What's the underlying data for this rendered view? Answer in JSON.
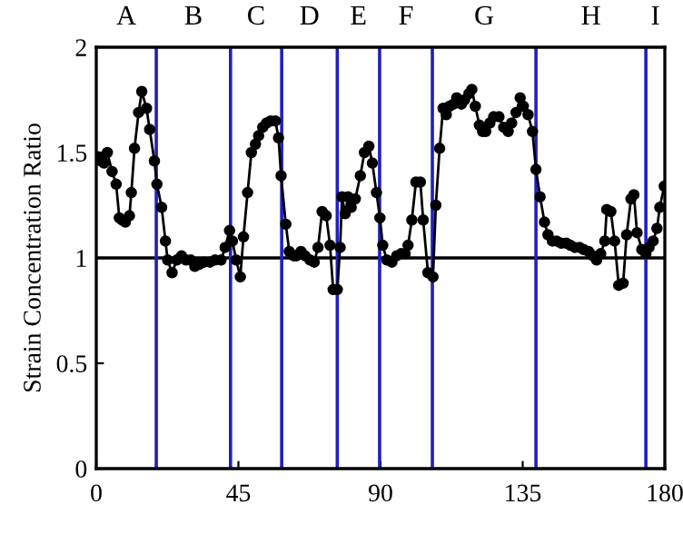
{
  "chart_data": {
    "type": "line",
    "ylabel": "Strain Concentration Ratio",
    "marker": "circle",
    "grid": false,
    "xlim": [
      0,
      180
    ],
    "xticks": [
      0,
      45,
      90,
      135,
      180
    ],
    "ylim": [
      0,
      2
    ],
    "yticks": [
      0,
      0.5,
      1,
      1.5,
      2
    ],
    "x": [
      0.6,
      1.5,
      2.5,
      3.5,
      5,
      6.3,
      7.3,
      8.2,
      9.2,
      10.5,
      11.1,
      12.1,
      13.4,
      14.4,
      15.9,
      16.9,
      18.4,
      19.2,
      20.7,
      21.9,
      22.6,
      24,
      25.5,
      27,
      28.4,
      29.9,
      31.2,
      32.6,
      34.1,
      36,
      37.6,
      39.5,
      40.8,
      42.2,
      43.1,
      44.3,
      45.6,
      46.6,
      47.9,
      49.1,
      50.4,
      51.4,
      52.7,
      53.9,
      55.2,
      56.7,
      57.7,
      58.5,
      60,
      61.1,
      62.5,
      63.4,
      64.8,
      66.1,
      67.7,
      69,
      70.2,
      71.5,
      72.8,
      74,
      75,
      76.3,
      77.2,
      77.8,
      78.8,
      79.7,
      80.7,
      82,
      83.6,
      84.9,
      86.3,
      87.4,
      88.7,
      89.8,
      90.7,
      92,
      93.6,
      95.1,
      96.5,
      97.8,
      98.7,
      99.9,
      101.2,
      102.6,
      103.5,
      105,
      106.6,
      107.5,
      108.7,
      109.8,
      110.8,
      111.8,
      113.1,
      114.1,
      115.6,
      116.6,
      118,
      118.9,
      120,
      121.3,
      122.3,
      123.3,
      124.6,
      125.8,
      127.5,
      129,
      130.4,
      131.5,
      132.9,
      134.2,
      135.2,
      136.7,
      138.1,
      139.2,
      140.5,
      141.9,
      143,
      144.4,
      145.7,
      147.2,
      148.8,
      150.1,
      151.5,
      153,
      154.3,
      155.9,
      157.2,
      158.4,
      159.7,
      161,
      161.6,
      162.9,
      164.1,
      165.4,
      166.8,
      167.9,
      169.3,
      170.2,
      171.2,
      172.7,
      174,
      175,
      176.3,
      177.5,
      178.4,
      179.8
    ],
    "series": [
      {
        "color": "#000000",
        "values": [
          1.48,
          1.46,
          1.45,
          1.5,
          1.41,
          1.35,
          1.19,
          1.18,
          1.17,
          1.2,
          1.31,
          1.52,
          1.69,
          1.79,
          1.71,
          1.61,
          1.46,
          1.35,
          1.24,
          1.08,
          0.99,
          0.93,
          0.99,
          1.01,
          0.99,
          0.99,
          0.96,
          0.97,
          0.98,
          0.98,
          0.99,
          0.99,
          1.05,
          1.13,
          1.08,
          0.99,
          0.91,
          1.1,
          1.31,
          1.5,
          1.54,
          1.58,
          1.62,
          1.64,
          1.65,
          1.65,
          1.57,
          1.39,
          1.16,
          1.03,
          1.01,
          1.01,
          1.03,
          1.01,
          0.99,
          0.98,
          1.05,
          1.22,
          1.2,
          1.06,
          0.85,
          0.85,
          1.05,
          1.29,
          1.21,
          1.29,
          1.24,
          1.28,
          1.39,
          1.5,
          1.53,
          1.45,
          1.31,
          1.19,
          1.06,
          0.99,
          0.98,
          1.01,
          1.02,
          1.02,
          1.06,
          1.18,
          1.36,
          1.36,
          1.18,
          0.93,
          0.91,
          1.25,
          1.52,
          1.71,
          1.68,
          1.72,
          1.73,
          1.76,
          1.73,
          1.75,
          1.78,
          1.8,
          1.72,
          1.63,
          1.6,
          1.6,
          1.64,
          1.67,
          1.67,
          1.62,
          1.6,
          1.64,
          1.69,
          1.76,
          1.72,
          1.68,
          1.6,
          1.42,
          1.29,
          1.17,
          1.11,
          1.08,
          1.08,
          1.07,
          1.07,
          1.06,
          1.05,
          1.05,
          1.04,
          1.03,
          1.01,
          0.99,
          1.02,
          1.08,
          1.23,
          1.22,
          1.08,
          0.87,
          0.88,
          1.11,
          1.28,
          1.3,
          1.12,
          1.04,
          1.02,
          1.05,
          1.08,
          1.14,
          1.24,
          1.34
        ]
      }
    ],
    "ref_lines": [
      {
        "axis": "y",
        "value": 1,
        "color": "#000000"
      },
      {
        "axis": "x",
        "value": 19,
        "color": "#2020c0"
      },
      {
        "axis": "x",
        "value": 42.5,
        "color": "#2020c0"
      },
      {
        "axis": "x",
        "value": 58.7,
        "color": "#2020c0"
      },
      {
        "axis": "x",
        "value": 76.3,
        "color": "#2020c0"
      },
      {
        "axis": "x",
        "value": 89.7,
        "color": "#2020c0"
      },
      {
        "axis": "x",
        "value": 106.4,
        "color": "#2020c0"
      },
      {
        "axis": "x",
        "value": 139.2,
        "color": "#2020c0"
      },
      {
        "axis": "x",
        "value": 174,
        "color": "#2020c0"
      }
    ],
    "annotations": [
      "A",
      "B",
      "C",
      "D",
      "E",
      "F",
      "G",
      "H",
      "I"
    ]
  }
}
